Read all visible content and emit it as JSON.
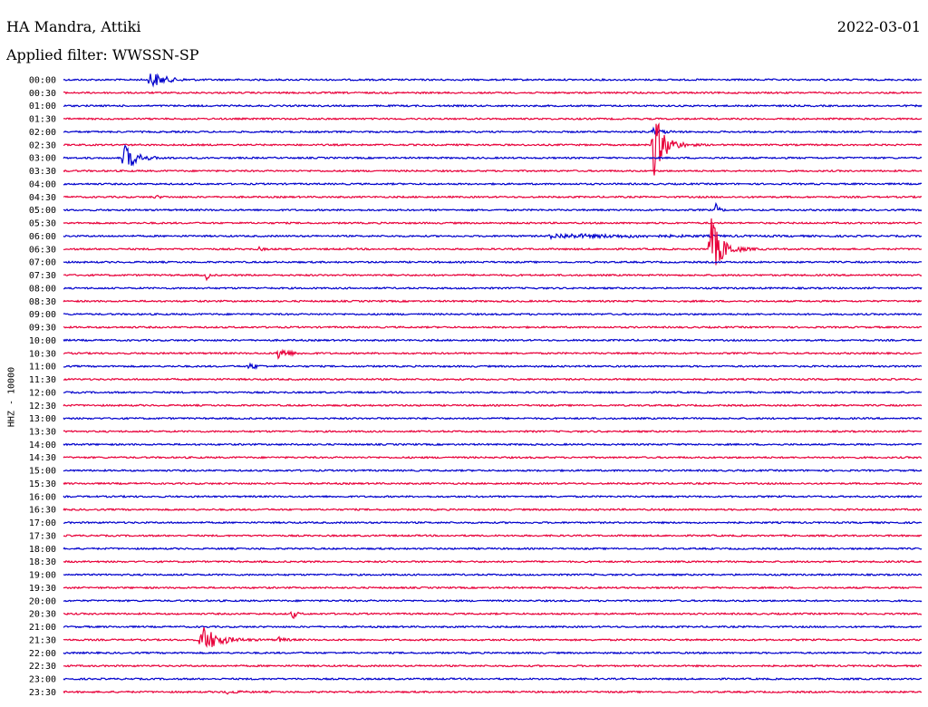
{
  "header": {
    "station": "HA Mandra, Attiki",
    "date": "2022-03-01",
    "filter": "Applied filter: WWSSN-SP"
  },
  "chart_data": {
    "type": "line",
    "title": "HA Mandra, Attiki",
    "subtitle": "Applied filter: WWSSN-SP",
    "date": "2022-03-01",
    "ylabel": "HHZ - 10000",
    "row_labels": [
      "00:00",
      "00:30",
      "01:00",
      "01:30",
      "02:00",
      "02:30",
      "03:00",
      "03:30",
      "04:00",
      "04:30",
      "05:00",
      "05:30",
      "06:00",
      "06:30",
      "07:00",
      "07:30",
      "08:00",
      "08:30",
      "09:00",
      "09:30",
      "10:00",
      "10:30",
      "11:00",
      "11:30",
      "12:00",
      "12:30",
      "13:00",
      "13:30",
      "14:00",
      "14:30",
      "15:00",
      "15:30",
      "16:00",
      "16:30",
      "17:00",
      "17:30",
      "18:00",
      "18:30",
      "19:00",
      "19:30",
      "20:00",
      "20:30",
      "21:00",
      "21:30",
      "22:00",
      "22:30",
      "23:00",
      "23:30"
    ],
    "row_colors": [
      "#0000cc",
      "#e8003a"
    ],
    "minutes_per_row": 30,
    "events": [
      {
        "row": 0,
        "minute": 3.0,
        "peak_rows": 0.75,
        "duration_min": 1.2
      },
      {
        "row": 4,
        "minute": 20.6,
        "peak_rows": 0.25,
        "duration_min": 1.0
      },
      {
        "row": 5,
        "minute": 20.6,
        "peak_rows": 2.8,
        "duration_min": 1.0
      },
      {
        "row": 6,
        "minute": 2.1,
        "peak_rows": 1.25,
        "duration_min": 1.0
      },
      {
        "row": 9,
        "minute": 3.2,
        "peak_rows": 0.15,
        "duration_min": 0.4
      },
      {
        "row": 10,
        "minute": 22.8,
        "peak_rows": 0.5,
        "duration_min": 0.3
      },
      {
        "row": 12,
        "minute": 17.0,
        "peak_rows": 0.15,
        "duration_min": 9.0
      },
      {
        "row": 13,
        "minute": 6.8,
        "peak_rows": 0.15,
        "duration_min": 0.4
      },
      {
        "row": 13,
        "minute": 22.6,
        "peak_rows": 2.7,
        "duration_min": 1.0
      },
      {
        "row": 15,
        "minute": 5.0,
        "peak_rows": 0.45,
        "duration_min": 0.2
      },
      {
        "row": 21,
        "minute": 7.5,
        "peak_rows": 0.55,
        "duration_min": 0.8
      },
      {
        "row": 22,
        "minute": 6.5,
        "peak_rows": 0.3,
        "duration_min": 0.6
      },
      {
        "row": 41,
        "minute": 8.0,
        "peak_rows": 0.45,
        "duration_min": 0.3
      },
      {
        "row": 43,
        "minute": 4.8,
        "peak_rows": 1.25,
        "duration_min": 1.4
      },
      {
        "row": 43,
        "minute": 7.5,
        "peak_rows": 0.2,
        "duration_min": 0.6
      },
      {
        "row": 47,
        "minute": 5.6,
        "peak_rows": 0.15,
        "duration_min": 1.0
      }
    ],
    "grid": false
  }
}
